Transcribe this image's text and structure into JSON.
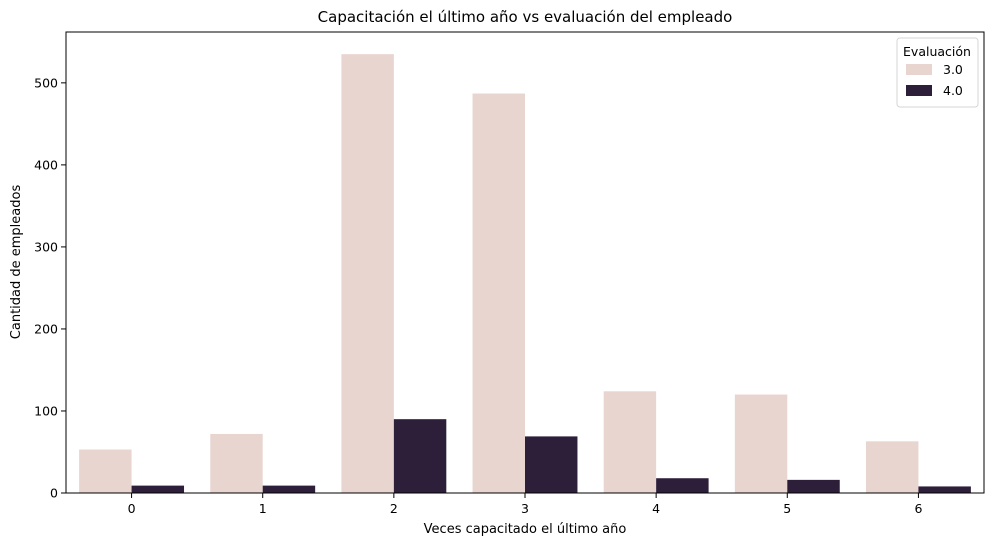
{
  "chart_data": {
    "type": "bar",
    "title": "Capacitación el último año vs evaluación del empleado",
    "xlabel": "Veces capacitado el último año",
    "ylabel": "Cantidad de empleados",
    "categories": [
      "0",
      "1",
      "2",
      "3",
      "4",
      "5",
      "6"
    ],
    "series": [
      {
        "name": "3.0",
        "color": "#e8d5d0",
        "values": [
          53,
          72,
          535,
          487,
          124,
          120,
          63
        ]
      },
      {
        "name": "4.0",
        "color": "#2d1e3a",
        "values": [
          9,
          9,
          90,
          69,
          18,
          16,
          8
        ]
      }
    ],
    "ylim": [
      0,
      562
    ],
    "yticks": [
      0,
      100,
      200,
      300,
      400,
      500
    ],
    "grid": false,
    "legend": {
      "title": "Evaluación",
      "placement": "top-right"
    }
  }
}
